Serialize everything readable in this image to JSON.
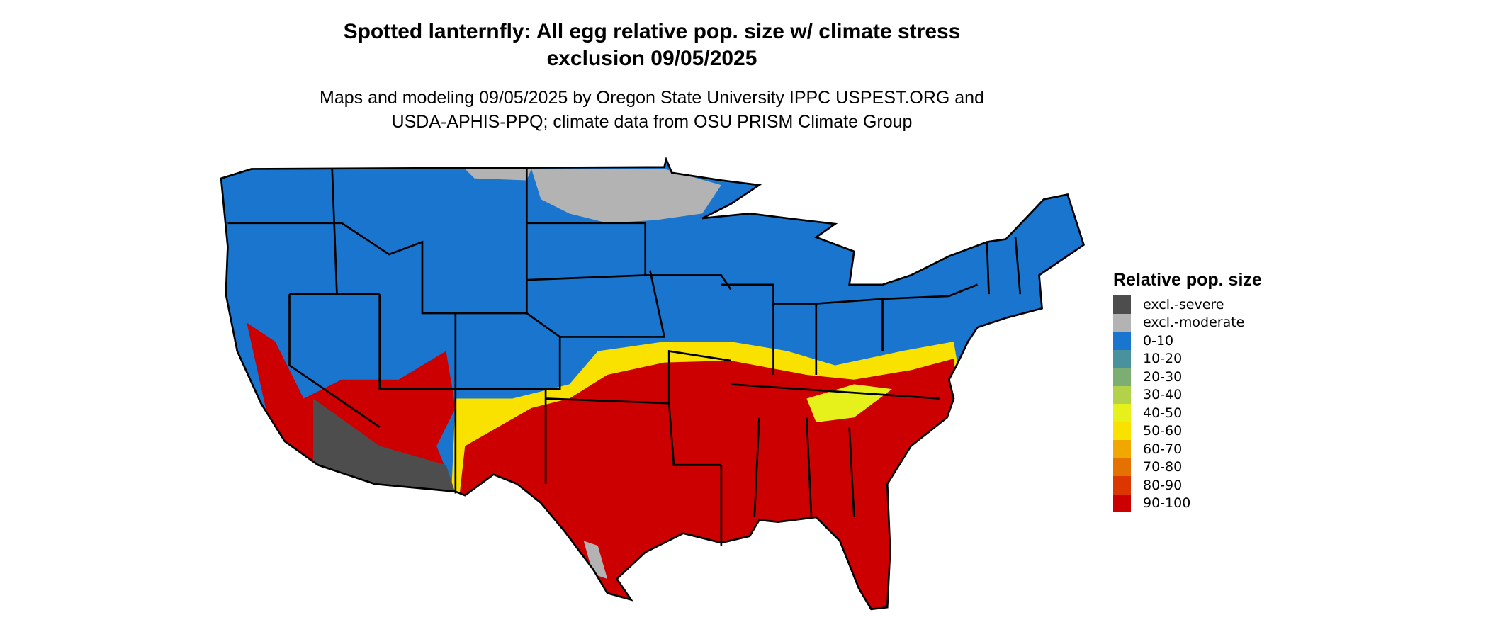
{
  "title_line1": "Spotted lanternfly: All egg relative pop. size w/ climate stress",
  "title_line2": "exclusion 09/05/2025",
  "subtitle_line1": "Maps and modeling 09/05/2025 by Oregon State University IPPC USPEST.ORG and",
  "subtitle_line2": "USDA-APHIS-PPQ; climate data from OSU PRISM Climate Group",
  "legend": {
    "title": "Relative pop. size",
    "items": [
      {
        "label": "excl.-severe",
        "color": "#4d4d4d"
      },
      {
        "label": "excl.-moderate",
        "color": "#b3b3b3"
      },
      {
        "label": "0-10",
        "color": "#1a75cf"
      },
      {
        "label": "10-20",
        "color": "#4a919e"
      },
      {
        "label": "20-30",
        "color": "#7cae74"
      },
      {
        "label": "30-40",
        "color": "#b3d24a"
      },
      {
        "label": "40-50",
        "color": "#e6f01a"
      },
      {
        "label": "50-60",
        "color": "#f9e100"
      },
      {
        "label": "60-70",
        "color": "#f0a800"
      },
      {
        "label": "70-80",
        "color": "#e57200"
      },
      {
        "label": "80-90",
        "color": "#dc3700"
      },
      {
        "label": "90-100",
        "color": "#cc0000"
      }
    ]
  }
}
